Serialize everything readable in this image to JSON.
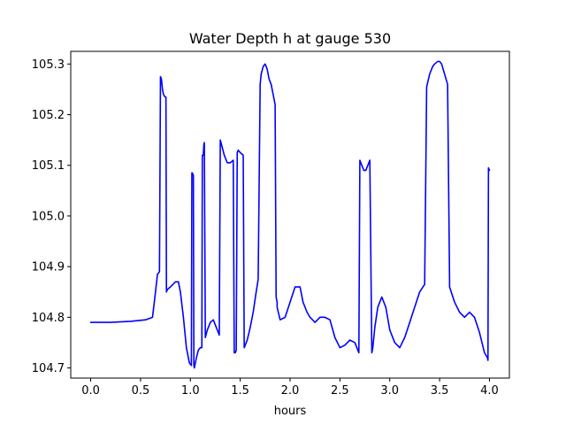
{
  "chart_data": {
    "type": "line",
    "title": "Water Depth h at gauge 530",
    "xlabel": "hours",
    "ylabel": "",
    "xlim": [
      -0.2,
      4.2
    ],
    "ylim": [
      104.68,
      105.325
    ],
    "grid": false,
    "x_ticks": [
      0.0,
      0.5,
      1.0,
      1.5,
      2.0,
      2.5,
      3.0,
      3.5,
      4.0
    ],
    "x_tick_labels": [
      "0.0",
      "0.5",
      "1.0",
      "1.5",
      "2.0",
      "2.5",
      "3.0",
      "3.5",
      "4.0"
    ],
    "y_ticks": [
      104.7,
      104.8,
      104.9,
      105.0,
      105.1,
      105.2,
      105.3
    ],
    "y_tick_labels": [
      "104.7",
      "104.8",
      "104.9",
      "105.0",
      "105.1",
      "105.2",
      "105.3"
    ],
    "series": [
      {
        "color": "#0000ff",
        "x": [
          0.0,
          0.2,
          0.4,
          0.55,
          0.62,
          0.65,
          0.67,
          0.69,
          0.7,
          0.71,
          0.72,
          0.73,
          0.745,
          0.755,
          0.76,
          0.77,
          0.8,
          0.85,
          0.88,
          0.9,
          0.93,
          0.96,
          0.99,
          1.01,
          1.015,
          1.02,
          1.03,
          1.035,
          1.04,
          1.06,
          1.08,
          1.1,
          1.115,
          1.12,
          1.13,
          1.135,
          1.14,
          1.15,
          1.17,
          1.2,
          1.23,
          1.26,
          1.29,
          1.3,
          1.32,
          1.34,
          1.37,
          1.4,
          1.43,
          1.44,
          1.45,
          1.46,
          1.47,
          1.48,
          1.5,
          1.53,
          1.54,
          1.55,
          1.57,
          1.6,
          1.63,
          1.66,
          1.68,
          1.7,
          1.71,
          1.73,
          1.75,
          1.77,
          1.79,
          1.81,
          1.83,
          1.85,
          1.86,
          1.87,
          1.87,
          1.9,
          1.95,
          2.0,
          2.05,
          2.1,
          2.13,
          2.17,
          2.2,
          2.25,
          2.3,
          2.35,
          2.4,
          2.45,
          2.5,
          2.55,
          2.6,
          2.65,
          2.69,
          2.7,
          2.7,
          2.72,
          2.74,
          2.76,
          2.78,
          2.8,
          2.82,
          2.83,
          2.85,
          2.88,
          2.92,
          2.96,
          3.0,
          3.05,
          3.1,
          3.15,
          3.2,
          3.25,
          3.3,
          3.35,
          3.37,
          3.37,
          3.4,
          3.43,
          3.45,
          3.48,
          3.5,
          3.52,
          3.55,
          3.58,
          3.6,
          3.6,
          3.65,
          3.7,
          3.75,
          3.8,
          3.85,
          3.9,
          3.95,
          3.98,
          3.985,
          3.99,
          4.0
        ],
        "y": [
          104.79,
          104.79,
          104.792,
          104.795,
          104.8,
          104.85,
          104.885,
          104.89,
          105.275,
          105.27,
          105.25,
          105.24,
          105.235,
          105.235,
          104.85,
          104.855,
          104.86,
          104.87,
          104.87,
          104.85,
          104.8,
          104.74,
          104.71,
          104.705,
          105.085,
          105.085,
          105.08,
          104.705,
          104.7,
          104.72,
          104.735,
          104.74,
          104.74,
          105.12,
          105.12,
          105.14,
          105.145,
          104.76,
          104.775,
          104.79,
          104.795,
          104.78,
          104.765,
          105.15,
          105.135,
          105.12,
          105.105,
          105.105,
          105.11,
          104.73,
          104.73,
          104.735,
          105.125,
          105.13,
          105.125,
          105.12,
          104.74,
          104.745,
          104.755,
          104.78,
          104.81,
          104.85,
          104.875,
          105.26,
          105.28,
          105.295,
          105.3,
          105.29,
          105.27,
          105.26,
          105.24,
          105.22,
          104.84,
          104.83,
          104.82,
          104.795,
          104.8,
          104.83,
          104.86,
          104.86,
          104.83,
          104.81,
          104.8,
          104.79,
          104.8,
          104.8,
          104.795,
          104.76,
          104.74,
          104.745,
          104.755,
          104.75,
          104.73,
          105.11,
          105.11,
          105.1,
          105.09,
          105.09,
          105.1,
          105.11,
          104.73,
          104.74,
          104.78,
          104.82,
          104.84,
          104.82,
          104.775,
          104.75,
          104.74,
          104.76,
          104.79,
          104.82,
          104.85,
          104.865,
          105.255,
          105.255,
          105.28,
          105.295,
          105.3,
          105.305,
          105.305,
          105.3,
          105.28,
          105.26,
          104.87,
          104.86,
          104.83,
          104.81,
          104.8,
          104.81,
          104.8,
          104.77,
          104.73,
          104.72,
          104.715,
          105.095,
          105.09
        ]
      }
    ]
  }
}
